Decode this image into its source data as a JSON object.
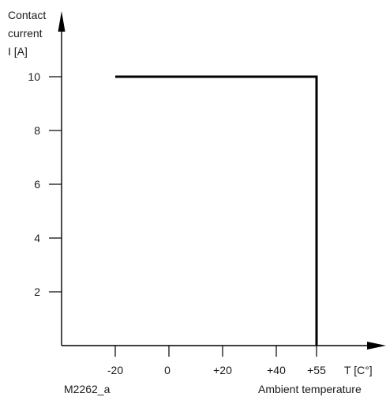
{
  "chart_data": {
    "type": "line",
    "ylabel_lines": [
      "Contact",
      "current",
      "I  [A]"
    ],
    "xlabel": "Ambient temperature",
    "x_unit_label": "T  [C°]",
    "figure_id": "M2262_a",
    "x_ticks": [
      {
        "value": -20,
        "label": "-20"
      },
      {
        "value": 0,
        "label": "0"
      },
      {
        "value": 20,
        "label": "+20"
      },
      {
        "value": 40,
        "label": "+40"
      },
      {
        "value": 55,
        "label": "+55"
      }
    ],
    "y_ticks": [
      {
        "value": 2,
        "label": "2"
      },
      {
        "value": 4,
        "label": "4"
      },
      {
        "value": 6,
        "label": "6"
      },
      {
        "value": 8,
        "label": "8"
      },
      {
        "value": 10,
        "label": "10"
      }
    ],
    "series": [
      {
        "x": [
          -20,
          55,
          55
        ],
        "y": [
          10,
          10,
          0
        ]
      }
    ],
    "xlim": [
      -40,
      75
    ],
    "ylim": [
      0,
      12
    ],
    "grid": false
  }
}
